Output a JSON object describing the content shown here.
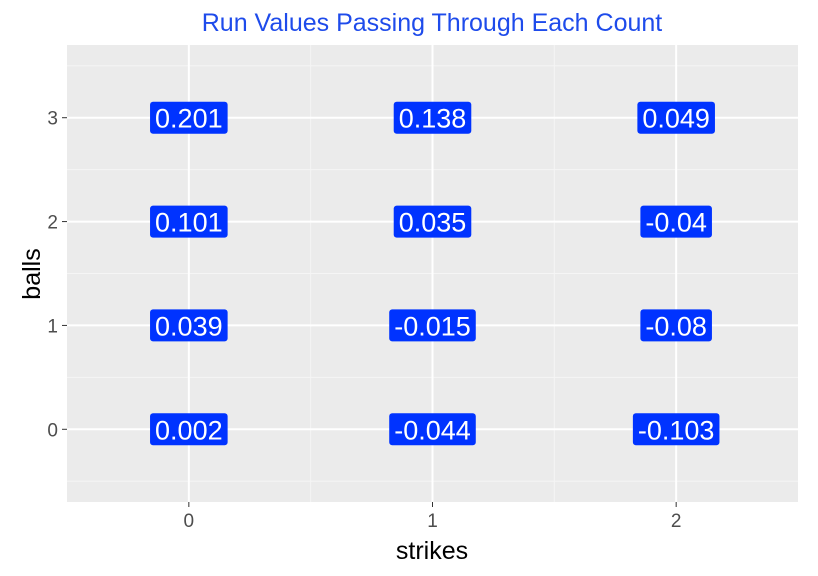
{
  "colors": {
    "panel_background": "#EBEBEB",
    "grid_major": "#FFFFFF",
    "grid_minor": "#F5F5F5",
    "label_fill": "#0033FF",
    "label_text": "#FFFFFF",
    "title": "#1E4BEB",
    "axis_text": "#4D4D4D",
    "axis_title": "#000000"
  },
  "chart_data": {
    "type": "table",
    "title": "Run Values Passing Through Each Count",
    "xlabel": "strikes",
    "ylabel": "balls",
    "x_ticks": [
      "0",
      "1",
      "2"
    ],
    "y_ticks": [
      "0",
      "1",
      "2",
      "3"
    ],
    "xlim": [
      -0.5,
      2.5
    ],
    "ylim": [
      -0.7,
      3.7
    ],
    "grid": true,
    "cells": [
      {
        "strikes": 0,
        "balls": 3,
        "value": "0.201"
      },
      {
        "strikes": 1,
        "balls": 3,
        "value": "0.138"
      },
      {
        "strikes": 2,
        "balls": 3,
        "value": "0.049"
      },
      {
        "strikes": 0,
        "balls": 2,
        "value": "0.101"
      },
      {
        "strikes": 1,
        "balls": 2,
        "value": "0.035"
      },
      {
        "strikes": 2,
        "balls": 2,
        "value": "-0.04"
      },
      {
        "strikes": 0,
        "balls": 1,
        "value": "0.039"
      },
      {
        "strikes": 1,
        "balls": 1,
        "value": "-0.015"
      },
      {
        "strikes": 2,
        "balls": 1,
        "value": "-0.08"
      },
      {
        "strikes": 0,
        "balls": 0,
        "value": "0.002"
      },
      {
        "strikes": 1,
        "balls": 0,
        "value": "-0.044"
      },
      {
        "strikes": 2,
        "balls": 0,
        "value": "-0.103"
      }
    ]
  }
}
